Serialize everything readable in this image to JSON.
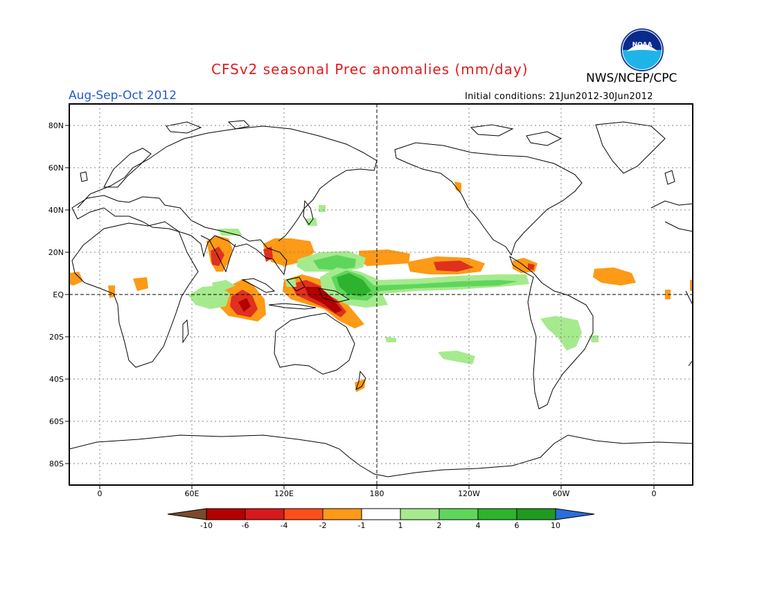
{
  "header": {
    "title": "CFSv2 seasonal Prec anomalies (mm/day)",
    "agency": "NWS/NCEP/CPC",
    "period": "Aug-Sep-Oct 2012",
    "initial_conditions": "Initial conditions: 21Jun2012-30Jun2012",
    "logo_text": "NOAA"
  },
  "axes": {
    "lat_labels": [
      "80N",
      "60N",
      "40N",
      "20N",
      "EQ",
      "20S",
      "40S",
      "60S",
      "80S"
    ],
    "lon_labels": [
      "0",
      "60E",
      "120E",
      "180",
      "120W",
      "60W",
      "0"
    ]
  },
  "colorbar": {
    "labels": [
      "-10",
      "-6",
      "-4",
      "-2",
      "-1",
      "1",
      "2",
      "4",
      "6",
      "10"
    ],
    "colors": [
      "#7a4b2a",
      "#b30000",
      "#d7191c",
      "#fc4e1a",
      "#fd9a16",
      "#ffffff",
      "#a6ea8e",
      "#5fd65b",
      "#2db32d",
      "#1f9a1f",
      "#2a6edb"
    ]
  },
  "anomaly_colors": {
    "dry_strong": "#b30000",
    "dry_mod": "#e0301e",
    "dry_light": "#fd9a16",
    "wet_light": "#a6ea8e",
    "wet_mod": "#5fd65b",
    "wet_strong": "#2db32d"
  }
}
